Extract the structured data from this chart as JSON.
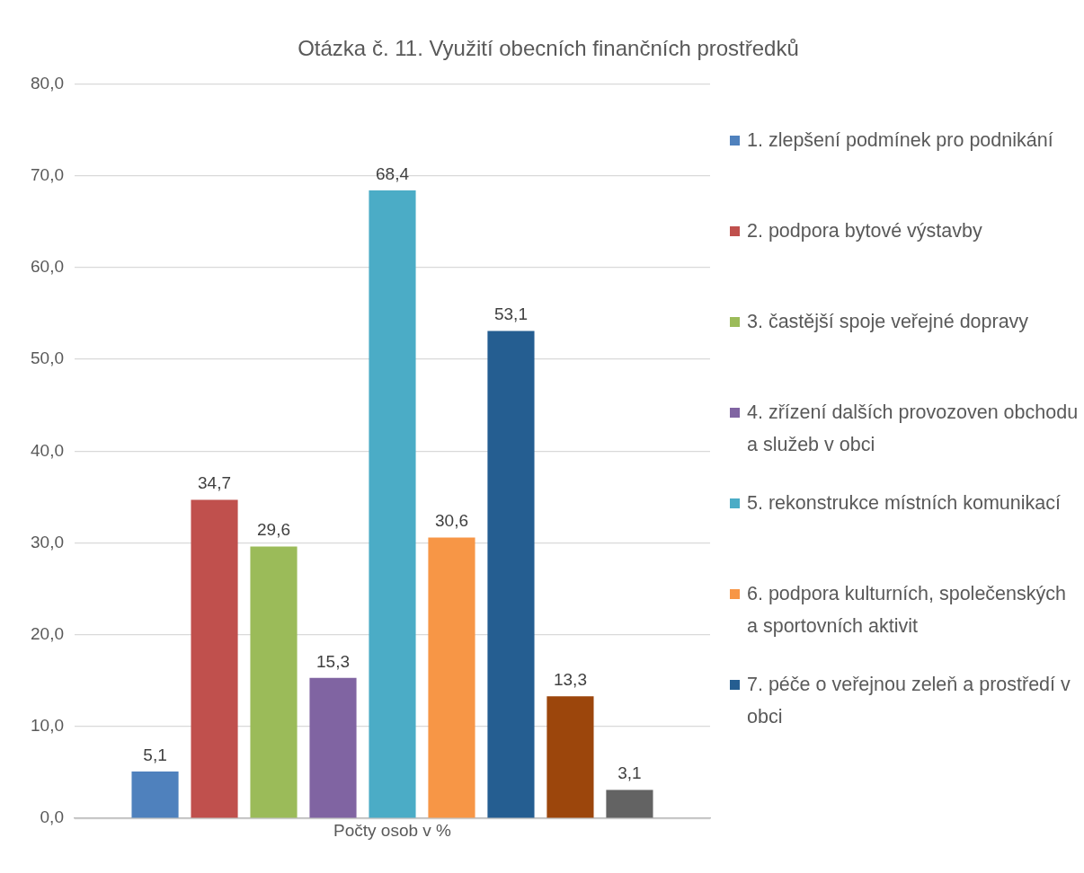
{
  "chart_data": {
    "type": "bar",
    "title": "Otázka č. 11. Využití obecních finančních prostředků",
    "categories": [
      "Počty osob v %"
    ],
    "series": [
      {
        "name": "1. zlepšení podmínek pro podnikání",
        "color": "#4f81bd",
        "values": [
          5.1
        ],
        "value_labels": [
          "5,1"
        ]
      },
      {
        "name": "2. podpora bytové výstavby",
        "color": "#c0504d",
        "values": [
          34.7
        ],
        "value_labels": [
          "34,7"
        ]
      },
      {
        "name": "3. častější spoje veřejné dopravy",
        "color": "#9bbb59",
        "values": [
          29.6
        ],
        "value_labels": [
          "29,6"
        ]
      },
      {
        "name": "4. zřízení dalších provozoven obchodu a služeb v obci",
        "color": "#8064a2",
        "values": [
          15.3
        ],
        "value_labels": [
          "15,3"
        ]
      },
      {
        "name": "5. rekonstrukce místních komunikací",
        "color": "#4bacc6",
        "values": [
          68.4
        ],
        "value_labels": [
          "68,4"
        ]
      },
      {
        "name": "6. podpora kulturních, společenských a sportovních aktivit",
        "color": "#f79646",
        "values": [
          30.6
        ],
        "value_labels": [
          "30,6"
        ]
      },
      {
        "name": "7. péče o veřejnou zeleň a prostředí v obci",
        "color": "#255e91",
        "values": [
          53.1
        ],
        "value_labels": [
          "53,1"
        ]
      },
      {
        "color": "#9c460c",
        "values": [
          13.3
        ],
        "value_labels": [
          "13,3"
        ]
      },
      {
        "color": "#636363",
        "values": [
          3.1
        ],
        "value_labels": [
          "3,1"
        ]
      }
    ],
    "ylim": [
      0,
      80
    ],
    "yticks": [
      {
        "value": 0,
        "label": "0,0"
      },
      {
        "value": 10,
        "label": "10,0"
      },
      {
        "value": 20,
        "label": "20,0"
      },
      {
        "value": 30,
        "label": "30,0"
      },
      {
        "value": 40,
        "label": "40,0"
      },
      {
        "value": 50,
        "label": "50,0"
      },
      {
        "value": 60,
        "label": "60,0"
      },
      {
        "value": 70,
        "label": "70,0"
      },
      {
        "value": 80,
        "label": "80,0"
      }
    ],
    "grid": "y",
    "legend": "right"
  }
}
